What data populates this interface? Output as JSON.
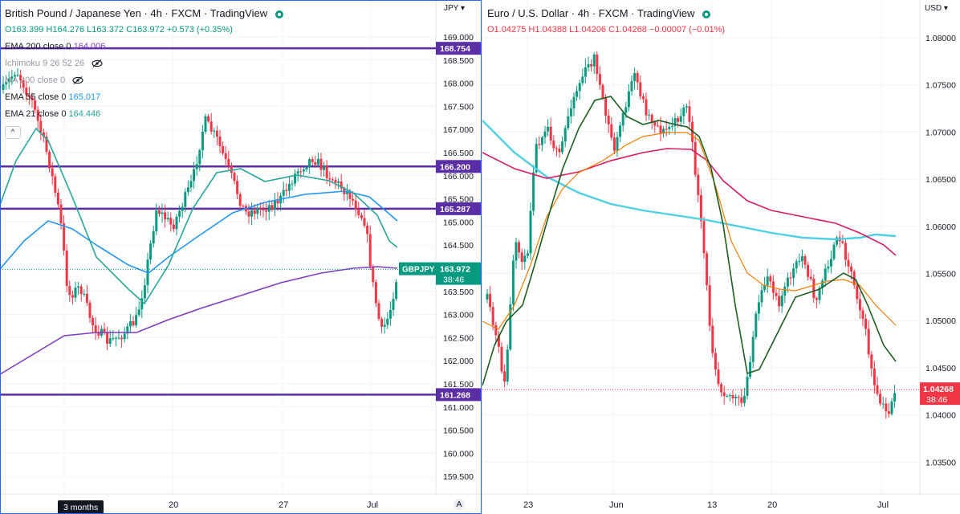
{
  "left": {
    "symbol": "British Pound / Japanese Yen · 4h · FXCM · TradingView",
    "ohlc": {
      "o": "O163.399",
      "h": "H164.276",
      "l": "L163.372",
      "c": "C163.972",
      "chg": "+0.573 (+0.35%)"
    },
    "indicators": [
      {
        "label": "EMA 200 close 0",
        "value": "164.006",
        "color": "#7e3dbe",
        "muted": false,
        "hidden": false
      },
      {
        "label": "Ichimoku 9 26 52 26",
        "value": "",
        "color": "",
        "muted": true,
        "hidden": true
      },
      {
        "label": "MA 200 close 0",
        "value": "",
        "color": "",
        "muted": true,
        "hidden": true
      },
      {
        "label": "EMA 55 close 0",
        "value": "165.017",
        "color": "#2196f3",
        "muted": false,
        "hidden": false
      },
      {
        "label": "EMA 21 close 0",
        "value": "164.446",
        "color": "#26a69a",
        "muted": false,
        "hidden": false
      }
    ],
    "collapse_glyph": "^",
    "currency": "JPY",
    "price_ticks": [
      "169.000",
      "168.500",
      "168.000",
      "167.500",
      "167.000",
      "166.500",
      "166.000",
      "165.500",
      "165.000",
      "164.500",
      "164.000",
      "163.500",
      "163.000",
      "162.500",
      "162.000",
      "161.500",
      "161.000",
      "160.500",
      "160.000",
      "159.500"
    ],
    "hlines": [
      {
        "value": "168.754",
        "price": 168.754
      },
      {
        "value": "166.200",
        "price": 166.2
      },
      {
        "value": "165.287",
        "price": 165.287
      },
      {
        "value": "161.268",
        "price": 161.268
      }
    ],
    "last_price": {
      "symbol": "GBPJPY",
      "value": "163.972",
      "countdown": "38:46"
    },
    "date_ticks": [
      "20",
      "27",
      "Jul"
    ],
    "range_tag": "3 months",
    "auto_label": "A"
  },
  "right": {
    "symbol": "Euro / U.S. Dollar · 4h · FXCM · TradingView",
    "ohlc": {
      "o": "O1.04275",
      "h": "H1.04388",
      "l": "L1.04206",
      "c": "C1.04268",
      "chg": "−0.00007 (−0.01%)"
    },
    "currency": "USD",
    "price_ticks": [
      "1.08000",
      "1.07500",
      "1.07000",
      "1.06500",
      "1.06000",
      "1.05500",
      "1.05000",
      "1.04500",
      "1.04000",
      "1.03500"
    ],
    "last_price": {
      "value": "1.04268",
      "countdown": "38:46"
    },
    "date_ticks": [
      "23",
      "Jun",
      "13",
      "20",
      "Jul"
    ]
  },
  "colors": {
    "up": "#089981",
    "down": "#f23645",
    "hline": "#5b2ea6",
    "ema200": "#7e3dbe",
    "ema55": "#2196f3",
    "ema21": "#26a69a",
    "eu_cyan": "#4dd0e1",
    "eu_crimson": "#d81b60",
    "eu_orange": "#f57c00",
    "eu_green": "#1b5e20"
  }
}
